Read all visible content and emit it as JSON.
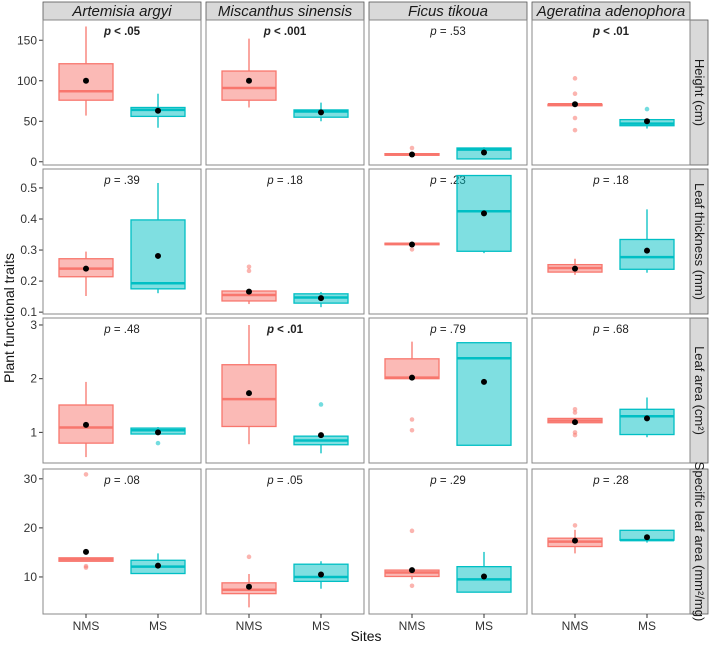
{
  "chart_data": {
    "type": "box",
    "xlabel": "Sites",
    "ylabel": "Plant functional traits",
    "categories": [
      "NMS",
      "MS"
    ],
    "colors": {
      "NMS": "#F8766D",
      "MS": "#00BFC4",
      "mean": "#000000"
    },
    "grid": false,
    "legend": "none",
    "species": [
      "Artemisia argyi",
      "Miscanthus sinensis",
      "Ficus tikoua",
      "Ageratina adenophora"
    ],
    "traits": [
      {
        "label": "Height (cm)",
        "ylim": [
          -4,
          175
        ],
        "ticks": [
          {
            "v": 0,
            "t": "0"
          },
          {
            "v": 50,
            "t": "50"
          },
          {
            "v": 100,
            "t": "100"
          },
          {
            "v": 150,
            "t": "150"
          }
        ]
      },
      {
        "label": "Leaf thickness (mm)",
        "ylim": [
          0.094,
          0.561
        ],
        "ticks": [
          {
            "v": 0.1,
            "t": "0.1"
          },
          {
            "v": 0.2,
            "t": "0.2"
          },
          {
            "v": 0.3,
            "t": "0.3"
          },
          {
            "v": 0.4,
            "t": "0.4"
          },
          {
            "v": 0.5,
            "t": "0.5"
          }
        ]
      },
      {
        "label": "Leaf area (cm²)",
        "ylim": [
          0.43,
          3.13
        ],
        "ticks": [
          {
            "v": 1,
            "t": "1"
          },
          {
            "v": 2,
            "t": "2"
          },
          {
            "v": 3,
            "t": "3"
          }
        ]
      },
      {
        "label": "Specific leaf area (mm²/mg)",
        "ylim": [
          2.45,
          32
        ],
        "ticks": [
          {
            "v": 10,
            "t": "10"
          },
          {
            "v": 20,
            "t": "20"
          },
          {
            "v": 30,
            "t": "30"
          }
        ]
      }
    ],
    "panels": [
      [
        {
          "p": "p",
          "ptext": " < .05",
          "significant": true,
          "NMS": {
            "lo": 57,
            "q1": 76,
            "med": 87,
            "q3": 121,
            "hi": 167,
            "mean": 100,
            "out": []
          },
          "MS": {
            "lo": 42,
            "q1": 56,
            "med": 64,
            "q3": 67,
            "hi": 84,
            "mean": 63,
            "out": []
          }
        },
        {
          "p": "p",
          "ptext": " < .001",
          "significant": true,
          "NMS": {
            "lo": 67,
            "q1": 76,
            "med": 91,
            "q3": 112,
            "hi": 152,
            "mean": 100,
            "out": []
          },
          "MS": {
            "lo": 50,
            "q1": 55,
            "med": 62,
            "q3": 64,
            "hi": 73,
            "mean": 61,
            "out": []
          }
        },
        {
          "p": "p",
          "ptext": " = .53",
          "significant": false,
          "NMS": {
            "lo": 8,
            "q1": 8,
            "med": 9,
            "q3": 10,
            "hi": 10,
            "mean": 9,
            "out": [
              17
            ]
          },
          "MS": {
            "lo": 3.5,
            "q1": 3.5,
            "med": 15,
            "q3": 17,
            "hi": 18,
            "mean": 11.5,
            "out": []
          }
        },
        {
          "p": "p",
          "ptext": " < .01",
          "significant": true,
          "NMS": {
            "lo": 70,
            "q1": 70,
            "med": 71,
            "q3": 71,
            "hi": 71,
            "mean": 71,
            "out": [
              103,
              84,
              54,
              39
            ]
          },
          "MS": {
            "lo": 41,
            "q1": 44.5,
            "med": 47,
            "q3": 52,
            "hi": 52,
            "mean": 50,
            "out": [
              65
            ]
          }
        }
      ],
      [
        {
          "p": "p",
          "ptext": " = .39",
          "significant": false,
          "NMS": {
            "lo": 0.152,
            "q1": 0.214,
            "med": 0.24,
            "q3": 0.272,
            "hi": 0.295,
            "mean": 0.24,
            "out": []
          },
          "MS": {
            "lo": 0.161,
            "q1": 0.175,
            "med": 0.193,
            "q3": 0.397,
            "hi": 0.516,
            "mean": 0.281,
            "out": []
          }
        },
        {
          "p": "p",
          "ptext": " = .18",
          "significant": false,
          "NMS": {
            "lo": 0.126,
            "q1": 0.136,
            "med": 0.155,
            "q3": 0.168,
            "hi": 0.168,
            "mean": 0.166,
            "out": [
              0.246,
              0.233
            ]
          },
          "MS": {
            "lo": 0.116,
            "q1": 0.129,
            "med": 0.147,
            "q3": 0.159,
            "hi": 0.165,
            "mean": 0.145,
            "out": []
          }
        },
        {
          "p": "p",
          "ptext": " = .23",
          "significant": false,
          "NMS": {
            "lo": 0.318,
            "q1": 0.318,
            "med": 0.32,
            "q3": 0.322,
            "hi": 0.322,
            "mean": 0.318,
            "out": [
              0.302
            ]
          },
          "MS": {
            "lo": 0.29,
            "q1": 0.296,
            "med": 0.425,
            "q3": 0.54,
            "hi": 0.54,
            "mean": 0.418,
            "out": []
          }
        },
        {
          "p": "p",
          "ptext": " = .18",
          "significant": false,
          "NMS": {
            "lo": 0.22,
            "q1": 0.229,
            "med": 0.242,
            "q3": 0.253,
            "hi": 0.272,
            "mean": 0.24,
            "out": []
          },
          "MS": {
            "lo": 0.227,
            "q1": 0.238,
            "med": 0.277,
            "q3": 0.334,
            "hi": 0.431,
            "mean": 0.298,
            "out": []
          }
        }
      ],
      [
        {
          "p": "p",
          "ptext": " = .48",
          "significant": false,
          "NMS": {
            "lo": 0.54,
            "q1": 0.8,
            "med": 1.09,
            "q3": 1.51,
            "hi": 1.94,
            "mean": 1.14,
            "out": []
          },
          "MS": {
            "lo": 0.97,
            "q1": 0.97,
            "med": 1.04,
            "q3": 1.08,
            "hi": 1.1,
            "mean": 1.0,
            "out": [
              0.8
            ]
          }
        },
        {
          "p": "p",
          "ptext": " < .01",
          "significant": true,
          "NMS": {
            "lo": 0.78,
            "q1": 1.11,
            "med": 1.62,
            "q3": 2.26,
            "hi": 3.0,
            "mean": 1.73,
            "out": []
          },
          "MS": {
            "lo": 0.61,
            "q1": 0.77,
            "med": 0.85,
            "q3": 0.93,
            "hi": 0.93,
            "mean": 0.95,
            "out": [
              1.52
            ]
          }
        },
        {
          "p": "p",
          "ptext": " = .79",
          "significant": false,
          "NMS": {
            "lo": 2.0,
            "q1": 2.0,
            "med": 2.02,
            "q3": 2.37,
            "hi": 2.69,
            "mean": 2.02,
            "out": [
              1.24,
              1.04
            ]
          },
          "MS": {
            "lo": 0.76,
            "q1": 0.76,
            "med": 2.38,
            "q3": 2.67,
            "hi": 2.67,
            "mean": 1.94,
            "out": []
          }
        },
        {
          "p": "p",
          "ptext": " = .68",
          "significant": false,
          "NMS": {
            "lo": 1.18,
            "q1": 1.18,
            "med": 1.22,
            "q3": 1.26,
            "hi": 1.26,
            "mean": 1.19,
            "out": [
              1.43,
              1.37,
              1.0,
              0.95
            ]
          },
          "MS": {
            "lo": 0.91,
            "q1": 0.96,
            "med": 1.3,
            "q3": 1.43,
            "hi": 1.65,
            "mean": 1.26,
            "out": []
          }
        }
      ],
      [
        {
          "p": "p",
          "ptext": " = .08",
          "significant": false,
          "NMS": {
            "lo": 13.2,
            "q1": 13.2,
            "med": 13.6,
            "q3": 13.9,
            "hi": 13.9,
            "mean": 15.1,
            "out": [
              30.9,
              12.2,
              11.9
            ]
          },
          "MS": {
            "lo": 10.7,
            "q1": 10.7,
            "med": 12.1,
            "q3": 13.4,
            "hi": 14.8,
            "mean": 12.3,
            "out": []
          }
        },
        {
          "p": "p",
          "ptext": " = .05",
          "significant": false,
          "NMS": {
            "lo": 3.8,
            "q1": 6.6,
            "med": 7.4,
            "q3": 8.8,
            "hi": 10.6,
            "mean": 8.0,
            "out": [
              14.1
            ]
          },
          "MS": {
            "lo": 7.6,
            "q1": 9.1,
            "med": 10.0,
            "q3": 12.6,
            "hi": 13.2,
            "mean": 10.5,
            "out": []
          }
        },
        {
          "p": "p",
          "ptext": " = .29",
          "significant": false,
          "NMS": {
            "lo": 9.5,
            "q1": 10.1,
            "med": 10.9,
            "q3": 11.4,
            "hi": 11.6,
            "mean": 11.4,
            "out": [
              19.4,
              8.2
            ]
          },
          "MS": {
            "lo": 6.9,
            "q1": 6.9,
            "med": 9.5,
            "q3": 12.1,
            "hi": 15.1,
            "mean": 10.1,
            "out": []
          }
        },
        {
          "p": "p",
          "ptext": " = .28",
          "significant": false,
          "NMS": {
            "lo": 14.8,
            "q1": 16.2,
            "med": 17.2,
            "q3": 17.9,
            "hi": 19.6,
            "mean": 17.4,
            "out": [
              20.5
            ]
          },
          "MS": {
            "lo": 17.0,
            "q1": 17.5,
            "med": 17.5,
            "q3": 19.5,
            "hi": 19.5,
            "mean": 18.1,
            "out": []
          }
        }
      ]
    ]
  }
}
